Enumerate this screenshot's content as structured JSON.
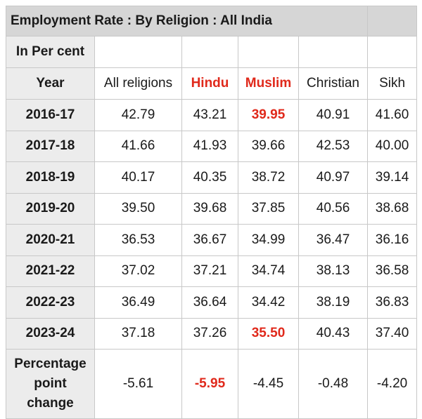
{
  "title": "Employment Rate : By Religion : All India",
  "unit_label": "In Per cent",
  "header": {
    "year_label": "Year",
    "columns": [
      "All religions",
      "Hindu",
      "Muslim",
      "Christian",
      "Sikh"
    ]
  },
  "rows": [
    {
      "year": "2016-17",
      "values": [
        "42.79",
        "43.21",
        "39.95",
        "40.91",
        "41.60"
      ]
    },
    {
      "year": "2017-18",
      "values": [
        "41.66",
        "41.93",
        "39.66",
        "42.53",
        "40.00"
      ]
    },
    {
      "year": "2018-19",
      "values": [
        "40.17",
        "40.35",
        "38.72",
        "40.97",
        "39.14"
      ]
    },
    {
      "year": "2019-20",
      "values": [
        "39.50",
        "39.68",
        "37.85",
        "40.56",
        "38.68"
      ]
    },
    {
      "year": "2020-21",
      "values": [
        "36.53",
        "36.67",
        "34.99",
        "36.47",
        "36.16"
      ]
    },
    {
      "year": "2021-22",
      "values": [
        "37.02",
        "37.21",
        "34.74",
        "38.13",
        "36.58"
      ]
    },
    {
      "year": "2022-23",
      "values": [
        "36.49",
        "36.64",
        "34.42",
        "38.19",
        "36.83"
      ]
    },
    {
      "year": "2023-24",
      "values": [
        "37.18",
        "37.26",
        "35.50",
        "40.43",
        "37.40"
      ]
    }
  ],
  "change": {
    "label_lines": [
      "Percentage",
      "point",
      "change"
    ],
    "values": [
      "-5.61",
      "-5.95",
      "-4.45",
      "-0.48",
      "-4.20"
    ]
  },
  "colors": {
    "highlight": "#e0291b",
    "header_bg": "#d6d6d6",
    "first_col_bg": "#ececec"
  }
}
